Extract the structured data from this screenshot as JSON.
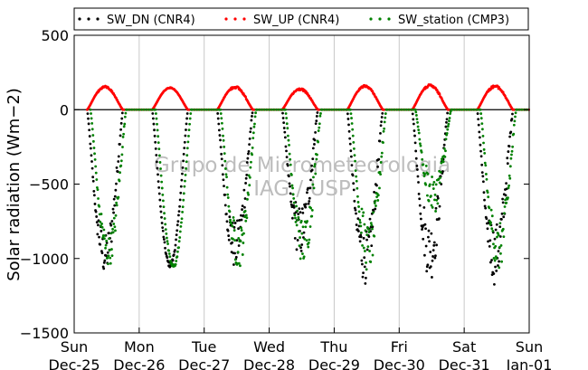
{
  "chart_data": {
    "type": "scatter",
    "ylabel": "Solar radiation (Wm−2)",
    "ylim": [
      -1500,
      500
    ],
    "yticks": [
      500,
      0,
      -500,
      -1000,
      -1500
    ],
    "xlim": [
      0,
      7
    ],
    "xticks": [
      {
        "value": 0,
        "line1": "Sun",
        "line2": "Dec-25"
      },
      {
        "value": 1,
        "line1": "Mon",
        "line2": "Dec-26"
      },
      {
        "value": 2,
        "line1": "Tue",
        "line2": "Dec-27"
      },
      {
        "value": 3,
        "line1": "Wed",
        "line2": "Dec-28"
      },
      {
        "value": 4,
        "line1": "Thu",
        "line2": "Dec-29"
      },
      {
        "value": 5,
        "line1": "Fri",
        "line2": "Dec-30"
      },
      {
        "value": 6,
        "line1": "Sat",
        "line2": "Dec-31"
      },
      {
        "value": 7,
        "line1": "Sun",
        "line2": "Jan-01"
      }
    ],
    "grid": "vertical",
    "legend_position": "top",
    "watermark": [
      "Grupo de Micrometeorologia",
      "IAG / USP"
    ],
    "series": [
      {
        "name": "SW_DN (CNR4)",
        "color": "#000000",
        "days": [
          {
            "start": 0.2,
            "end": 0.82,
            "peak": -1120,
            "noise": 0.25
          },
          {
            "start": 1.2,
            "end": 0.82,
            "peak": -1060,
            "noise": 0.03
          },
          {
            "start": 2.2,
            "end": 0.82,
            "peak": -1080,
            "noise": 0.3
          },
          {
            "start": 3.2,
            "end": 0.82,
            "peak": -1000,
            "noise": 0.35
          },
          {
            "start": 4.2,
            "end": 0.82,
            "peak": -1170,
            "noise": 0.3
          },
          {
            "start": 5.2,
            "end": 0.82,
            "peak": -1150,
            "noise": 0.35
          },
          {
            "start": 6.2,
            "end": 0.82,
            "peak": -1180,
            "noise": 0.35
          }
        ]
      },
      {
        "name": "SW_UP (CNR4)",
        "color": "#ff0000",
        "days": [
          {
            "start": 0.2,
            "end": 0.7,
            "peak": 160,
            "noise": 0.08
          },
          {
            "start": 1.2,
            "end": 0.7,
            "peak": 150,
            "noise": 0.03
          },
          {
            "start": 2.2,
            "end": 0.7,
            "peak": 160,
            "noise": 0.1
          },
          {
            "start": 3.2,
            "end": 0.7,
            "peak": 145,
            "noise": 0.1
          },
          {
            "start": 4.2,
            "end": 0.7,
            "peak": 165,
            "noise": 0.08
          },
          {
            "start": 5.2,
            "end": 0.7,
            "peak": 170,
            "noise": 0.1
          },
          {
            "start": 6.2,
            "end": 0.7,
            "peak": 165,
            "noise": 0.1
          }
        ]
      },
      {
        "name": "SW_station (CMP3)",
        "color": "#008000",
        "days": [
          {
            "start": 0.25,
            "end": 0.75,
            "peak": -1060,
            "noise": 0.2
          },
          {
            "start": 1.25,
            "end": 0.75,
            "peak": -1070,
            "noise": 0.03
          },
          {
            "start": 2.25,
            "end": 0.75,
            "peak": -1070,
            "noise": 0.25
          },
          {
            "start": 3.25,
            "end": 0.75,
            "peak": -1050,
            "noise": 0.3
          },
          {
            "start": 4.25,
            "end": 0.75,
            "peak": -1100,
            "noise": 0.3
          },
          {
            "start": 5.25,
            "end": 0.75,
            "peak": -700,
            "noise": 0.35
          },
          {
            "start": 6.25,
            "end": 0.75,
            "peak": -1100,
            "noise": 0.3
          }
        ]
      }
    ]
  }
}
